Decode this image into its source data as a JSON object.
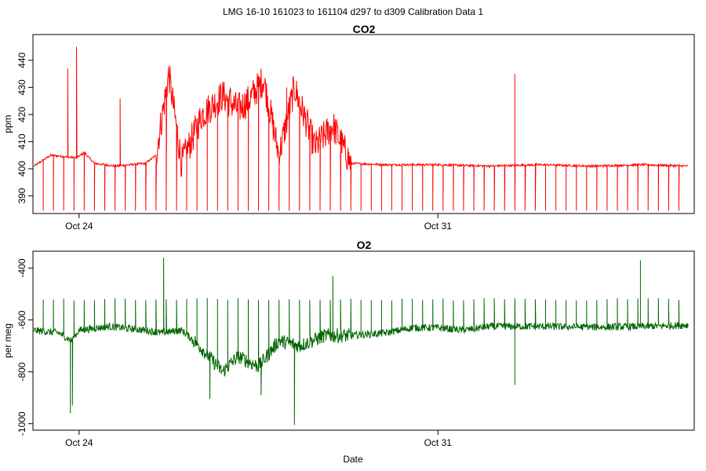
{
  "figure": {
    "title": "LMG   16-10    161023 to 161104    d297 to d309   Calibration Data 1",
    "xlabel": "Date"
  },
  "chart_data": [
    {
      "type": "line",
      "title": "CO2",
      "xlabel": "",
      "ylabel": "ppm",
      "xlim": [
        23.1,
        36.0
      ],
      "ylim": [
        383.5,
        449.5
      ],
      "x_ticks": [
        {
          "value": 24,
          "label": "Oct 24"
        },
        {
          "value": 31,
          "label": "Oct 31"
        }
      ],
      "y_ticks": [
        390,
        400,
        410,
        420,
        430,
        440
      ],
      "series": [
        {
          "color": "#ff0000",
          "x_start": 23.12,
          "x_end": 35.88
        }
      ],
      "key_points": [
        {
          "x": 23.12,
          "y": 401
        },
        {
          "x": 23.45,
          "y": 405
        },
        {
          "x": 23.95,
          "y": 404
        },
        {
          "x": 24.1,
          "y": 406
        },
        {
          "x": 24.3,
          "y": 402
        },
        {
          "x": 24.7,
          "y": 401
        },
        {
          "x": 25.3,
          "y": 402
        },
        {
          "x": 25.5,
          "y": 405
        },
        {
          "x": 25.75,
          "y": 435
        },
        {
          "x": 26.0,
          "y": 402
        },
        {
          "x": 26.4,
          "y": 420
        },
        {
          "x": 26.8,
          "y": 427
        },
        {
          "x": 27.1,
          "y": 422
        },
        {
          "x": 27.3,
          "y": 425
        },
        {
          "x": 27.6,
          "y": 433
        },
        {
          "x": 27.9,
          "y": 405
        },
        {
          "x": 28.2,
          "y": 430
        },
        {
          "x": 28.6,
          "y": 408
        },
        {
          "x": 28.95,
          "y": 416
        },
        {
          "x": 29.3,
          "y": 402
        },
        {
          "x": 30.0,
          "y": 401.5
        },
        {
          "x": 31.0,
          "y": 401.5
        },
        {
          "x": 32.0,
          "y": 401
        },
        {
          "x": 33.0,
          "y": 401.5
        },
        {
          "x": 34.0,
          "y": 401
        },
        {
          "x": 35.0,
          "y": 401.5
        },
        {
          "x": 35.88,
          "y": 401
        }
      ],
      "spikes": [
        {
          "x": 23.78,
          "y": 437
        },
        {
          "x": 23.95,
          "y": 445
        },
        {
          "x": 24.8,
          "y": 426
        },
        {
          "x": 26.95,
          "y": 430
        },
        {
          "x": 27.55,
          "y": 432
        },
        {
          "x": 28.05,
          "y": 430
        },
        {
          "x": 32.5,
          "y": 435
        }
      ],
      "calibration_dips": {
        "start": 23.3,
        "step": 0.2,
        "count": 63,
        "min": 384.5
      }
    },
    {
      "type": "line",
      "title": "O2",
      "xlabel": "",
      "ylabel": "per meg",
      "xlim": [
        23.1,
        36.0
      ],
      "ylim": [
        -1025,
        -335
      ],
      "x_ticks": [
        {
          "value": 24,
          "label": "Oct 24"
        },
        {
          "value": 31,
          "label": "Oct 31"
        }
      ],
      "y_ticks": [
        -1000,
        -800,
        -600,
        -400
      ],
      "series": [
        {
          "color": "#006400",
          "x_start": 23.12,
          "x_end": 35.88
        }
      ],
      "key_points": [
        {
          "x": 23.12,
          "y": -640
        },
        {
          "x": 23.6,
          "y": -650
        },
        {
          "x": 23.85,
          "y": -680
        },
        {
          "x": 24.0,
          "y": -640
        },
        {
          "x": 24.6,
          "y": -625
        },
        {
          "x": 25.3,
          "y": -640
        },
        {
          "x": 25.6,
          "y": -650
        },
        {
          "x": 26.0,
          "y": -640
        },
        {
          "x": 26.3,
          "y": -690
        },
        {
          "x": 26.8,
          "y": -800
        },
        {
          "x": 27.1,
          "y": -740
        },
        {
          "x": 27.5,
          "y": -780
        },
        {
          "x": 27.9,
          "y": -680
        },
        {
          "x": 28.3,
          "y": -700
        },
        {
          "x": 28.8,
          "y": -660
        },
        {
          "x": 29.3,
          "y": -660
        },
        {
          "x": 30.0,
          "y": -650
        },
        {
          "x": 30.5,
          "y": -630
        },
        {
          "x": 31.0,
          "y": -630
        },
        {
          "x": 31.5,
          "y": -640
        },
        {
          "x": 32.0,
          "y": -625
        },
        {
          "x": 33.0,
          "y": -625
        },
        {
          "x": 34.0,
          "y": -628
        },
        {
          "x": 35.0,
          "y": -625
        },
        {
          "x": 35.88,
          "y": -620
        }
      ],
      "spikes": [
        {
          "x": 23.83,
          "y": -960
        },
        {
          "x": 23.87,
          "y": -930
        },
        {
          "x": 25.65,
          "y": -360
        },
        {
          "x": 26.55,
          "y": -905
        },
        {
          "x": 27.55,
          "y": -890
        },
        {
          "x": 28.2,
          "y": -1005
        },
        {
          "x": 28.95,
          "y": -430
        },
        {
          "x": 32.5,
          "y": -850
        },
        {
          "x": 34.95,
          "y": -370
        }
      ],
      "calibration_spikes": {
        "start": 23.3,
        "step": 0.2,
        "count": 63,
        "max": -520
      }
    }
  ]
}
